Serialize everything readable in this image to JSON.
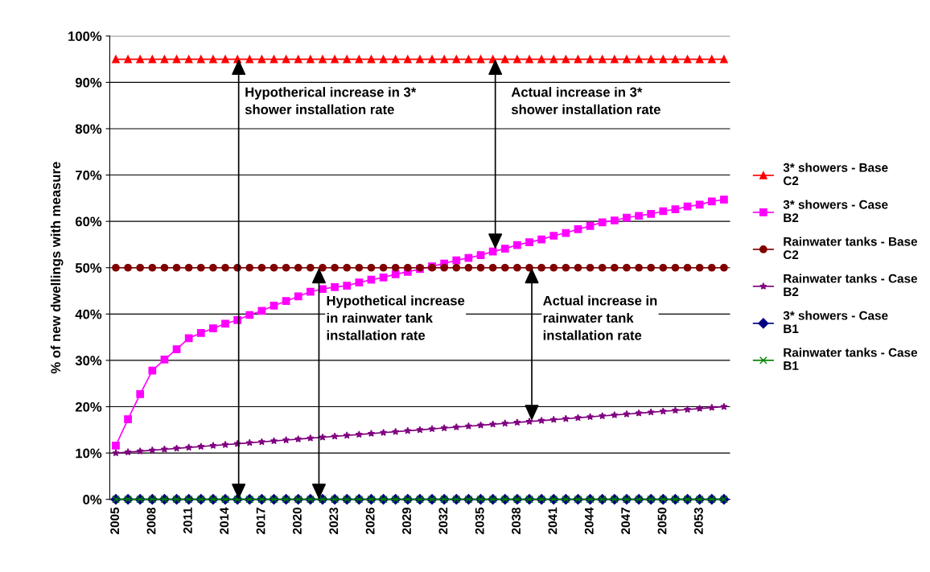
{
  "chart_data": {
    "type": "line",
    "ylabel": "% of new dwellings with measure",
    "categories": [
      "2005",
      null,
      null,
      "2008",
      null,
      null,
      "2011",
      null,
      null,
      "2014",
      null,
      null,
      "2017",
      null,
      null,
      "2020",
      null,
      null,
      "2023",
      null,
      null,
      "2026",
      null,
      null,
      "2029",
      null,
      null,
      "2032",
      null,
      null,
      "2035",
      null,
      null,
      "2038",
      null,
      null,
      "2041",
      null,
      null,
      "2044",
      null,
      null,
      "2047",
      null,
      null,
      "2050",
      null,
      null,
      "2053",
      null,
      null
    ],
    "ylim": [
      0,
      100
    ],
    "yticks": [
      {
        "value": 0,
        "label": "0%"
      },
      {
        "value": 10,
        "label": "10%"
      },
      {
        "value": 20,
        "label": "20%"
      },
      {
        "value": 30,
        "label": "30%"
      },
      {
        "value": 40,
        "label": "40%"
      },
      {
        "value": 50,
        "label": "50%"
      },
      {
        "value": 60,
        "label": "60%"
      },
      {
        "value": 70,
        "label": "70%"
      },
      {
        "value": 80,
        "label": "80%"
      },
      {
        "value": 90,
        "label": "90%"
      },
      {
        "value": 100,
        "label": "100%"
      }
    ],
    "grid": "y",
    "legend": "right",
    "series": [
      {
        "name": "3* showers - Base C2",
        "color": "#ff0000",
        "marker": "triangle",
        "values": [
          95,
          95,
          95,
          95,
          95,
          95,
          95,
          95,
          95,
          95,
          95,
          95,
          95,
          95,
          95,
          95,
          95,
          95,
          95,
          95,
          95,
          95,
          95,
          95,
          95,
          95,
          95,
          95,
          95,
          95,
          95,
          95,
          95,
          95,
          95,
          95,
          95,
          95,
          95,
          95,
          95,
          95,
          95,
          95,
          95,
          95,
          95,
          95,
          95,
          95,
          95
        ]
      },
      {
        "name": "3* showers - Case B2",
        "color": "#ff00ff",
        "marker": "square",
        "values": [
          11.6,
          17.3,
          22.7,
          27.8,
          30.2,
          32.4,
          34.8,
          35.9,
          36.9,
          37.9,
          38.7,
          39.8,
          40.7,
          41.8,
          42.8,
          43.8,
          44.8,
          45.4,
          45.8,
          46.1,
          46.8,
          47.4,
          47.9,
          48.6,
          49.1,
          49.7,
          50.3,
          50.9,
          51.6,
          52.1,
          52.7,
          53.5,
          54.1,
          54.9,
          55.5,
          56.1,
          56.9,
          57.5,
          58.3,
          59.0,
          59.8,
          60.2,
          60.8,
          61.2,
          61.6,
          62.2,
          62.6,
          63.2,
          63.6,
          64.3,
          64.7
        ]
      },
      {
        "name": "Rainwater tanks - Base C2",
        "color": "#800000",
        "marker": "circle",
        "values": [
          50,
          50,
          50,
          50,
          50,
          50,
          50,
          50,
          50,
          50,
          50,
          50,
          50,
          50,
          50,
          50,
          50,
          50,
          50,
          50,
          50,
          50,
          50,
          50,
          50,
          50,
          50,
          50,
          50,
          50,
          50,
          50,
          50,
          50,
          50,
          50,
          50,
          50,
          50,
          50,
          50,
          50,
          50,
          50,
          50,
          50,
          50,
          50,
          50,
          50,
          50
        ]
      },
      {
        "name": "Rainwater tanks - Case B2",
        "color": "#800080",
        "marker": "star",
        "values": [
          10.0,
          10.2,
          10.4,
          10.6,
          10.8,
          11.0,
          11.2,
          11.4,
          11.6,
          11.8,
          12.0,
          12.2,
          12.4,
          12.6,
          12.8,
          13.0,
          13.2,
          13.4,
          13.6,
          13.8,
          14.0,
          14.2,
          14.4,
          14.6,
          14.8,
          15.0,
          15.2,
          15.4,
          15.6,
          15.8,
          16.0,
          16.2,
          16.4,
          16.6,
          16.8,
          17.0,
          17.2,
          17.4,
          17.6,
          17.8,
          18.0,
          18.2,
          18.4,
          18.6,
          18.8,
          19.0,
          19.2,
          19.4,
          19.6,
          19.8,
          20.0
        ]
      },
      {
        "name": "3* showers - Case B1",
        "color": "#000080",
        "marker": "diamond",
        "values": [
          0,
          0,
          0,
          0,
          0,
          0,
          0,
          0,
          0,
          0,
          0,
          0,
          0,
          0,
          0,
          0,
          0,
          0,
          0,
          0,
          0,
          0,
          0,
          0,
          0,
          0,
          0,
          0,
          0,
          0,
          0,
          0,
          0,
          0,
          0,
          0,
          0,
          0,
          0,
          0,
          0,
          0,
          0,
          0,
          0,
          0,
          0,
          0,
          0,
          0,
          0
        ]
      },
      {
        "name": "Rainwater tanks - Case B1",
        "color": "#008000",
        "marker": "cross",
        "values": [
          0,
          0,
          0,
          0,
          0,
          0,
          0,
          0,
          0,
          0,
          0,
          0,
          0,
          0,
          0,
          0,
          0,
          0,
          0,
          0,
          0,
          0,
          0,
          0,
          0,
          0,
          0,
          0,
          0,
          0,
          0,
          0,
          0,
          0,
          0,
          0,
          0,
          0,
          0,
          0,
          0,
          0,
          0,
          0,
          0,
          0,
          0,
          0,
          0,
          0,
          0
        ]
      }
    ],
    "annotations": [
      "Hypotherical increase in 3*\nshower installation rate",
      "Actual increase in 3*\nshower installation rate",
      "Hypothetical increase\nin rainwater tank\ninstallation rate",
      "Actual increase in\nrainwater tank\ninstallation rate"
    ]
  }
}
